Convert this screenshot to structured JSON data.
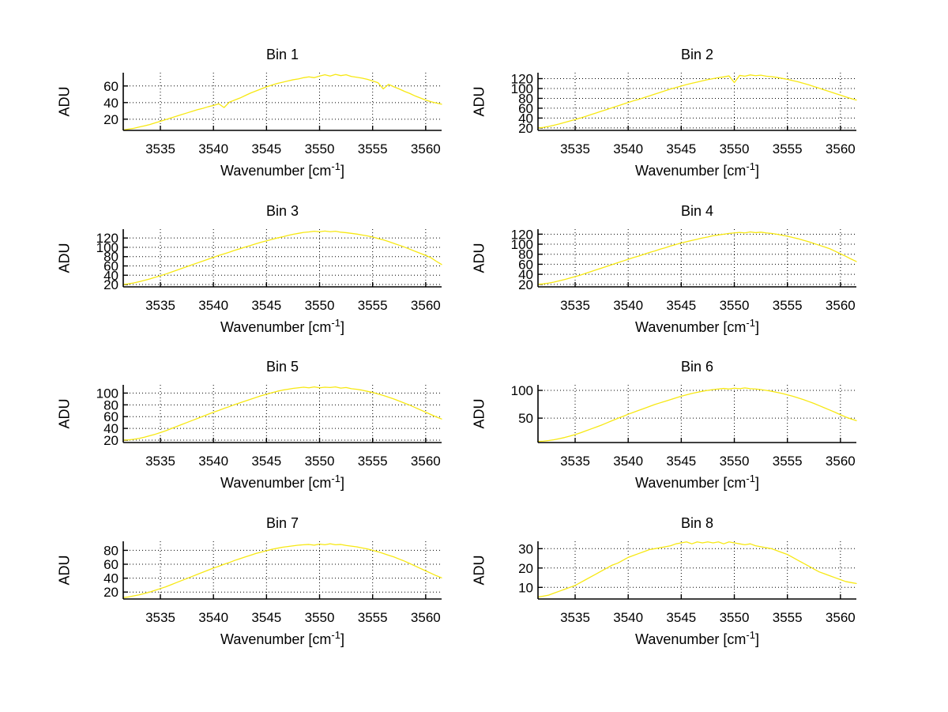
{
  "figure": {
    "background": "#ffffff"
  },
  "chart_data": {
    "type": "line",
    "layout": "8 subplots in 4 rows x 2 columns",
    "grid": true,
    "legend": "none",
    "curve_color": "#f7e813",
    "axis_color": "#000000",
    "xlabel": {
      "text": "Wavenumber [cm",
      "sup": "-1",
      "close": "]"
    },
    "ylabel": "ADU",
    "xlim": [
      3531.5,
      3561.5
    ],
    "xticks": [
      3535,
      3540,
      3545,
      3550,
      3555,
      3560
    ],
    "x_start": 3531.5,
    "x_step": 0.5,
    "charts": [
      {
        "title": "Bin 1",
        "ylim": [
          6.5,
          76
        ],
        "yticks": [
          20,
          40,
          60
        ],
        "values": [
          7,
          8,
          9,
          10.5,
          12,
          13.5,
          15.5,
          17.5,
          19.5,
          21.5,
          23.5,
          25.5,
          27.5,
          29.5,
          31.5,
          33,
          35,
          36.5,
          38.5,
          34,
          40.5,
          43,
          45.5,
          48.5,
          51.5,
          54,
          56.5,
          59,
          61,
          63,
          64.5,
          66,
          67.5,
          68.5,
          70,
          71,
          70,
          72,
          73.5,
          72,
          74,
          72.5,
          73.5,
          71.5,
          70.5,
          69.5,
          68,
          66,
          64,
          56.5,
          62,
          59,
          56.5,
          53.5,
          51,
          48,
          45.5,
          43,
          41,
          39.5,
          38
        ]
      },
      {
        "title": "Bin 2",
        "ylim": [
          15,
          132
        ],
        "yticks": [
          20,
          40,
          60,
          80,
          100,
          120
        ],
        "values": [
          20,
          21,
          23,
          25.5,
          28,
          31,
          34,
          37,
          40,
          43.5,
          47,
          50.5,
          54,
          57.5,
          61,
          64.5,
          68,
          71.5,
          75,
          78,
          81.5,
          85,
          88.5,
          92,
          95.5,
          99,
          102,
          105,
          108,
          110.5,
          113,
          115.5,
          118,
          120,
          122,
          123.5,
          125.5,
          112,
          126.5,
          125,
          127.5,
          126,
          127,
          125,
          124,
          122.5,
          120.5,
          118.5,
          116,
          113.5,
          110.5,
          107.5,
          104,
          100.5,
          97,
          93.5,
          90,
          86.5,
          83,
          79.5,
          76.5
        ]
      },
      {
        "title": "Bin 3",
        "ylim": [
          15,
          139
        ],
        "yticks": [
          20,
          40,
          60,
          80,
          100,
          120
        ],
        "values": [
          20,
          21.5,
          23.5,
          26,
          29,
          32,
          35.5,
          39,
          42.5,
          46.5,
          50.5,
          54.5,
          58.5,
          62.5,
          66.5,
          70.5,
          74.5,
          78.5,
          82.5,
          86,
          89.5,
          93.5,
          97,
          100.5,
          104,
          107.5,
          111,
          114,
          117,
          120,
          122.5,
          125.5,
          128,
          130,
          132,
          133,
          134.5,
          133.5,
          135,
          133.5,
          134.5,
          132.5,
          131.5,
          130,
          128.5,
          126.5,
          124.5,
          122,
          119,
          116,
          112.5,
          108.5,
          104.5,
          100.5,
          96,
          91.5,
          87,
          82.5,
          77.5,
          70,
          63
        ]
      },
      {
        "title": "Bin 4",
        "ylim": [
          15,
          130
        ],
        "yticks": [
          20,
          40,
          60,
          80,
          100,
          120
        ],
        "values": [
          20,
          21,
          22.5,
          24.5,
          27,
          29.5,
          32.5,
          35.5,
          38.5,
          42,
          45.5,
          49,
          52.5,
          56,
          59.5,
          63,
          66.5,
          70,
          73.5,
          76.5,
          80,
          83.5,
          86.5,
          90,
          93,
          96.5,
          99.5,
          102.5,
          105,
          107.5,
          110,
          112.5,
          114.5,
          117,
          118.5,
          120,
          121.5,
          122.5,
          123.5,
          122.5,
          124.5,
          123,
          124,
          122.5,
          121.5,
          120,
          118,
          116,
          113.5,
          111,
          108,
          105,
          101.5,
          98,
          94.5,
          91,
          86,
          81,
          76,
          70.5,
          65.5
        ]
      },
      {
        "title": "Bin 5",
        "ylim": [
          16,
          114
        ],
        "yticks": [
          20,
          40,
          60,
          80,
          100
        ],
        "values": [
          20,
          20.5,
          21.5,
          23,
          25,
          27.5,
          30,
          33,
          36,
          39.5,
          43,
          46.5,
          50,
          53.5,
          57,
          60.5,
          64,
          67.5,
          70.5,
          74,
          77,
          80.5,
          83.5,
          86.5,
          89.5,
          92.5,
          95.5,
          98,
          100.5,
          103,
          105,
          106.5,
          108,
          109,
          110,
          109,
          110.5,
          109,
          110,
          109.5,
          110.5,
          108.5,
          109.5,
          107.5,
          106.5,
          105,
          103,
          101,
          98.5,
          96,
          93,
          90,
          86.5,
          83,
          79.5,
          75.5,
          71.5,
          67.5,
          63.5,
          59.5,
          56
        ]
      },
      {
        "title": "Bin 6",
        "ylim": [
          6,
          110
        ],
        "yticks": [
          50,
          100
        ],
        "values": [
          8,
          8.5,
          9.5,
          11,
          13,
          15,
          17.5,
          20.5,
          23.5,
          27,
          30.5,
          34,
          37.5,
          41.5,
          45.5,
          49.5,
          53,
          57,
          60.5,
          64,
          67.5,
          71,
          74.5,
          77.5,
          80.5,
          83.5,
          86.5,
          89.5,
          92,
          94.5,
          96.5,
          98.5,
          100,
          101.5,
          102.5,
          103.5,
          102.5,
          104,
          103,
          104.5,
          103,
          102.5,
          101.5,
          100,
          98.5,
          96.5,
          94.5,
          92,
          89.5,
          86.5,
          83.5,
          80,
          76.5,
          72.5,
          68.5,
          64.5,
          60.5,
          56,
          52,
          48.5,
          45.5
        ]
      },
      {
        "title": "Bin 7",
        "ylim": [
          10,
          93
        ],
        "yticks": [
          20,
          40,
          60,
          80
        ],
        "values": [
          12,
          13,
          14.5,
          16,
          18,
          20,
          22.5,
          25,
          27.5,
          30.5,
          33.5,
          36.5,
          39.5,
          42.5,
          45.5,
          48.5,
          51.5,
          54.5,
          57,
          60,
          62.5,
          65.5,
          68,
          70.5,
          73,
          75.5,
          77.5,
          79.5,
          81.5,
          83,
          84.5,
          85.5,
          86.5,
          87.5,
          88,
          88.5,
          87.5,
          89,
          88,
          89.5,
          88,
          88.5,
          87,
          86,
          85,
          83.5,
          82,
          80,
          78,
          75.5,
          73,
          70.5,
          67.5,
          64.5,
          61,
          57.5,
          54,
          50.5,
          47,
          43.5,
          40.5
        ]
      },
      {
        "title": "Bin 8",
        "ylim": [
          4,
          33.8
        ],
        "yticks": [
          10,
          20,
          30
        ],
        "values": [
          5,
          5.5,
          6,
          7,
          8,
          9,
          10,
          11,
          12.5,
          14,
          15.5,
          17,
          18.5,
          20,
          21.5,
          22.5,
          24,
          25.5,
          26.5,
          27.5,
          28.5,
          29.5,
          30,
          30.5,
          31,
          31.5,
          32.5,
          33,
          33.5,
          32.5,
          33.5,
          33,
          33.5,
          33,
          33.5,
          32.5,
          33.5,
          33,
          32.5,
          32,
          32.5,
          31.5,
          31,
          30.5,
          30,
          29,
          28,
          27,
          25.5,
          24,
          22.5,
          21,
          19.5,
          18,
          17,
          16,
          15,
          14,
          13,
          12.5,
          12
        ]
      }
    ]
  }
}
